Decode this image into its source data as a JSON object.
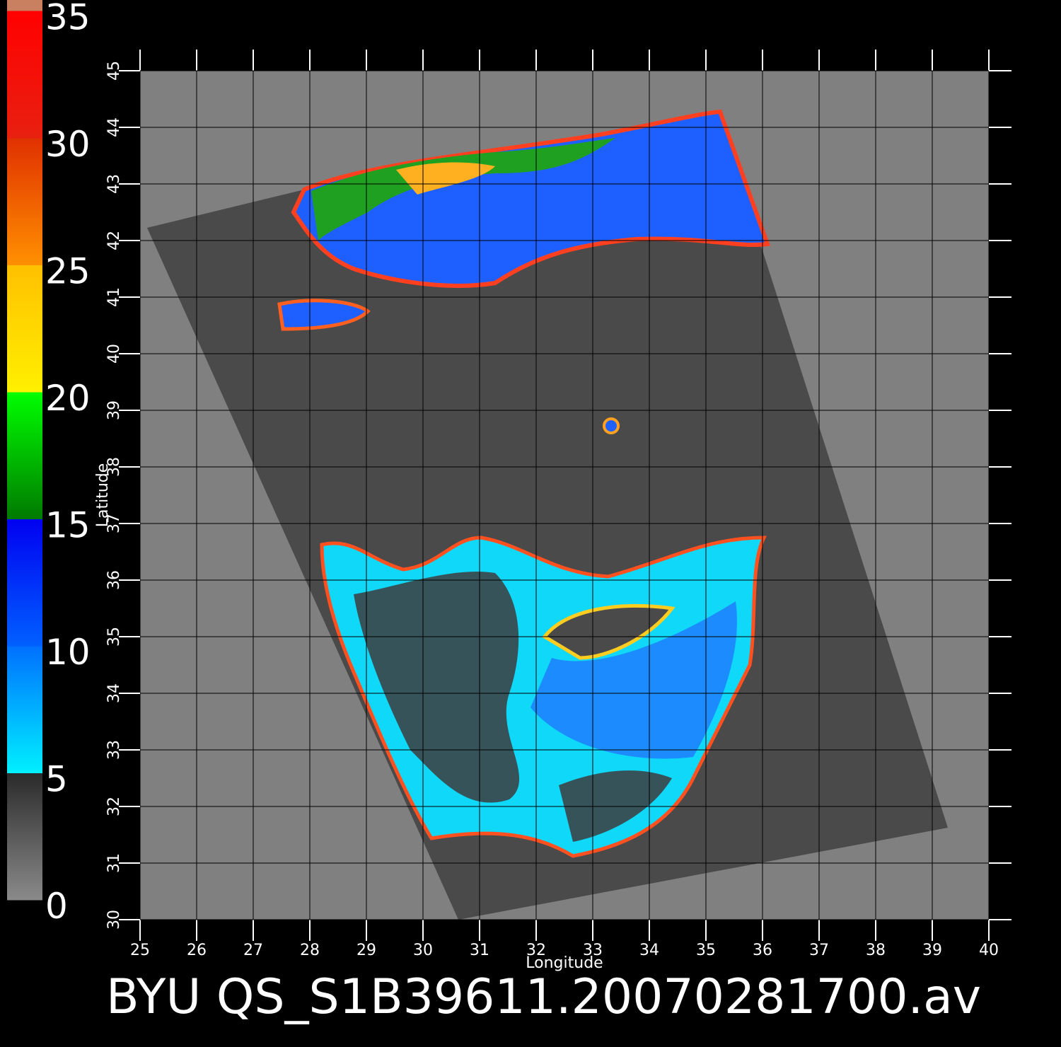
{
  "title": "BYU QS_S1B39611.20070281700.av",
  "x_axis": {
    "label": "Longitude",
    "lim": [
      25,
      40
    ],
    "ticks": [
      25,
      26,
      27,
      28,
      29,
      30,
      31,
      32,
      33,
      34,
      35,
      36,
      37,
      38,
      39,
      40
    ]
  },
  "y_axis": {
    "label": "Latitude",
    "lim": [
      30,
      45
    ],
    "ticks": [
      30,
      31,
      32,
      33,
      34,
      35,
      36,
      37,
      38,
      39,
      40,
      41,
      42,
      43,
      44,
      45
    ]
  },
  "colorbar": {
    "ticks": [
      0,
      5,
      10,
      15,
      20,
      25,
      30,
      35
    ],
    "segments": [
      [
        "#8a8a8a",
        "#2a2a2a"
      ],
      [
        "#00f0ff",
        "#0070ff"
      ],
      [
        "#0060ff",
        "#0000f0"
      ],
      [
        "#007a00",
        "#00ff00"
      ],
      [
        "#fff000",
        "#ffc000"
      ],
      [
        "#ff9000",
        "#e03000"
      ],
      [
        "#e82010",
        "#ff0000"
      ]
    ],
    "top_color": "#c88060"
  }
}
